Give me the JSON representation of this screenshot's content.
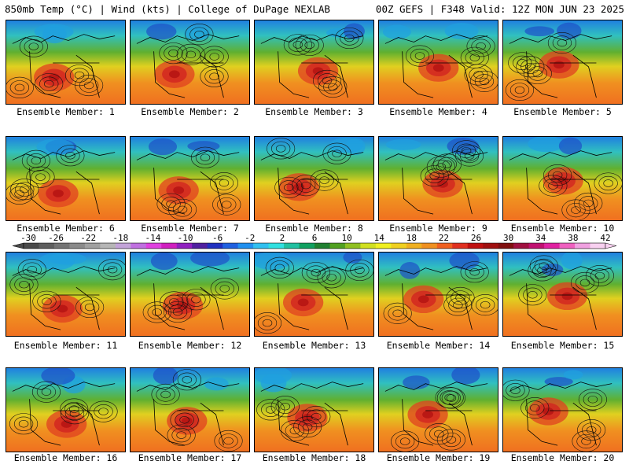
{
  "header": {
    "left": "850mb Temp (°C) | Wind (kts) | College of DuPage NEXLAB",
    "right": "00Z GEFS | F348 Valid: 12Z MON JUN 23 2025"
  },
  "panels": [
    {
      "label": "Ensemble Member: 1"
    },
    {
      "label": "Ensemble Member: 2"
    },
    {
      "label": "Ensemble Member: 3"
    },
    {
      "label": "Ensemble Member: 4"
    },
    {
      "label": "Ensemble Member: 5"
    },
    {
      "label": "Ensemble Member: 6"
    },
    {
      "label": "Ensemble Member: 7"
    },
    {
      "label": "Ensemble Member: 8"
    },
    {
      "label": "Ensemble Member: 9"
    },
    {
      "label": "Ensemble Member: 10"
    },
    {
      "label": "Ensemble Member: 11"
    },
    {
      "label": "Ensemble Member: 12"
    },
    {
      "label": "Ensemble Member: 13"
    },
    {
      "label": "Ensemble Member: 14"
    },
    {
      "label": "Ensemble Member: 15"
    },
    {
      "label": "Ensemble Member: 16"
    },
    {
      "label": "Ensemble Member: 17"
    },
    {
      "label": "Ensemble Member: 18"
    },
    {
      "label": "Ensemble Member: 19"
    },
    {
      "label": "Ensemble Member: 20"
    }
  ],
  "colorbar": {
    "tick_labels": [
      "-30",
      "-26",
      "-22",
      "-18",
      "-14",
      "-10",
      "-6",
      "-2",
      "2",
      "6",
      "10",
      "14",
      "18",
      "22",
      "26",
      "30",
      "34",
      "38",
      "42"
    ],
    "colors": [
      "#4a4a4a",
      "#5e5e5e",
      "#737373",
      "#8a8a8a",
      "#a0a0a0",
      "#b6b6b6",
      "#c3a3d8",
      "#c070e0",
      "#e040e0",
      "#d020c0",
      "#9020c0",
      "#5020a0",
      "#2030c0",
      "#2060e0",
      "#2090f0",
      "#30c0f0",
      "#30e0e0",
      "#20c0a0",
      "#10a060",
      "#208030",
      "#50a020",
      "#90c020",
      "#d0e020",
      "#f0f020",
      "#f0d020",
      "#f0b020",
      "#f09020",
      "#f06020",
      "#e03020",
      "#c01010",
      "#a01010",
      "#801010",
      "#a01040",
      "#c01070",
      "#e020a0",
      "#f060c0",
      "#f0a0e0",
      "#f8d0f0"
    ]
  }
}
